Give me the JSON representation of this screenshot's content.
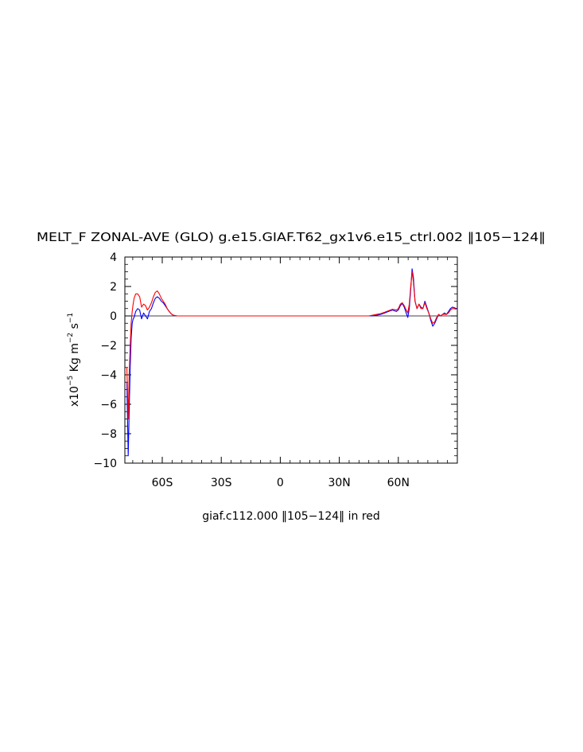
{
  "chart_data": {
    "type": "line",
    "title": "MELT_F ZONAL-AVE (GLO) g.e15.GIAF.T62_gx1v6.e15_ctrl.002 ‖105−124‖",
    "caption": "giaf.c112.000 ‖105−124‖ in red",
    "ylabel": {
      "prefix": "x10",
      "exp1": "−5",
      "mid": " Kg m",
      "exp2": "−2",
      "mid2": " s",
      "exp3": "−1"
    },
    "xlim": [
      -79,
      90
    ],
    "ylim": [
      -10,
      4
    ],
    "grid": false,
    "zero_line": true,
    "y_ticks": [
      {
        "value": 4,
        "label": "4"
      },
      {
        "value": 2,
        "label": "2"
      },
      {
        "value": 0,
        "label": "0"
      },
      {
        "value": -2,
        "label": "−2"
      },
      {
        "value": -4,
        "label": "−4"
      },
      {
        "value": -6,
        "label": "−6"
      },
      {
        "value": -8,
        "label": "−8"
      },
      {
        "value": -10,
        "label": "−10"
      }
    ],
    "x_ticks": [
      {
        "value": -60,
        "label": "60S"
      },
      {
        "value": -30,
        "label": "30S"
      },
      {
        "value": 0,
        "label": "0"
      },
      {
        "value": 30,
        "label": "30N"
      },
      {
        "value": 60,
        "label": "60N"
      }
    ],
    "series": [
      {
        "color": "#0000ff",
        "x": [
          -78,
          -77.3,
          -76.8,
          -76.3,
          -75.8,
          -75.3,
          -74.8,
          -74.3,
          -73.5,
          -72.5,
          -71.5,
          -70.5,
          -69.5,
          -68.5,
          -67.5,
          -66.5,
          -65.5,
          -64.5,
          -63.5,
          -62.5,
          -61.5,
          -60.5,
          -59.5,
          -58.5,
          -57.5,
          -56.5,
          -55.5,
          -54.5,
          -53.5,
          -52.5,
          -51,
          -50,
          45,
          47,
          49,
          51,
          53,
          55,
          57,
          59,
          60,
          61,
          62,
          63,
          64,
          64.8,
          65.6,
          66.3,
          67,
          67.7,
          68.5,
          69.5,
          70.5,
          71.5,
          72.5,
          73.5,
          74.5,
          75.5,
          76.5,
          77.5,
          78.5,
          79.5,
          80.5,
          81.5,
          82.5,
          83.5,
          84.5,
          85.5,
          86.5,
          87.5,
          88.5,
          89.5
        ],
        "y": [
          -4.5,
          -9.5,
          -6.5,
          -3.5,
          -1.5,
          -0.5,
          -0.2,
          -0.1,
          0.3,
          0.5,
          0.4,
          -0.2,
          0.2,
          0.0,
          -0.2,
          0.3,
          0.5,
          0.9,
          1.2,
          1.3,
          1.2,
          1.0,
          0.9,
          0.7,
          0.5,
          0.3,
          0.15,
          0.05,
          0.02,
          0.0,
          0.0,
          0.0,
          0.0,
          0.0,
          0.05,
          0.1,
          0.2,
          0.3,
          0.4,
          0.3,
          0.4,
          0.7,
          0.85,
          0.6,
          0.2,
          -0.1,
          0.5,
          1.8,
          3.2,
          2.6,
          1.0,
          0.5,
          0.8,
          0.6,
          0.5,
          1.0,
          0.6,
          0.2,
          -0.3,
          -0.7,
          -0.5,
          -0.2,
          0.1,
          0.0,
          0.1,
          0.2,
          0.1,
          0.3,
          0.5,
          0.6,
          0.55,
          0.5
        ]
      },
      {
        "color": "#ff0000",
        "x": [
          -78,
          -77.3,
          -76.8,
          -76.3,
          -75.8,
          -75.3,
          -74.8,
          -74.3,
          -73.5,
          -72.5,
          -71.5,
          -70.5,
          -69.5,
          -68.5,
          -67.5,
          -66.5,
          -65.5,
          -64.5,
          -63.5,
          -62.5,
          -61.5,
          -60.5,
          -59.5,
          -58.5,
          -57.5,
          -56.5,
          -55.5,
          -54.5,
          -53.5,
          -52.5,
          -51,
          -50,
          45,
          47,
          49,
          51,
          53,
          55,
          57,
          59,
          60,
          61,
          62,
          63,
          64,
          64.8,
          65.6,
          66.3,
          67,
          67.7,
          68.5,
          69.5,
          70.5,
          71.5,
          72.5,
          73.5,
          74.5,
          75.5,
          76.5,
          77.5,
          78.5,
          79.5,
          80.5,
          81.5,
          82.5,
          83.5,
          84.5,
          85.5,
          86.5,
          87.5,
          88.5,
          89.5
        ],
        "y": [
          -3.5,
          -7.0,
          -4.0,
          -2.0,
          -0.5,
          0.3,
          0.8,
          1.2,
          1.5,
          1.5,
          1.3,
          0.6,
          0.8,
          0.7,
          0.4,
          0.6,
          0.9,
          1.3,
          1.6,
          1.7,
          1.5,
          1.2,
          1.0,
          0.8,
          0.5,
          0.3,
          0.15,
          0.05,
          0.02,
          0.0,
          0.0,
          0.0,
          0.0,
          0.05,
          0.1,
          0.15,
          0.25,
          0.35,
          0.45,
          0.4,
          0.5,
          0.8,
          0.9,
          0.7,
          0.4,
          0.2,
          0.8,
          2.0,
          3.0,
          2.3,
          1.0,
          0.5,
          0.8,
          0.5,
          0.5,
          0.9,
          0.5,
          0.2,
          -0.2,
          -0.5,
          -0.4,
          -0.1,
          0.1,
          0.0,
          0.1,
          0.1,
          0.1,
          0.2,
          0.4,
          0.5,
          0.5,
          0.45
        ]
      }
    ]
  }
}
